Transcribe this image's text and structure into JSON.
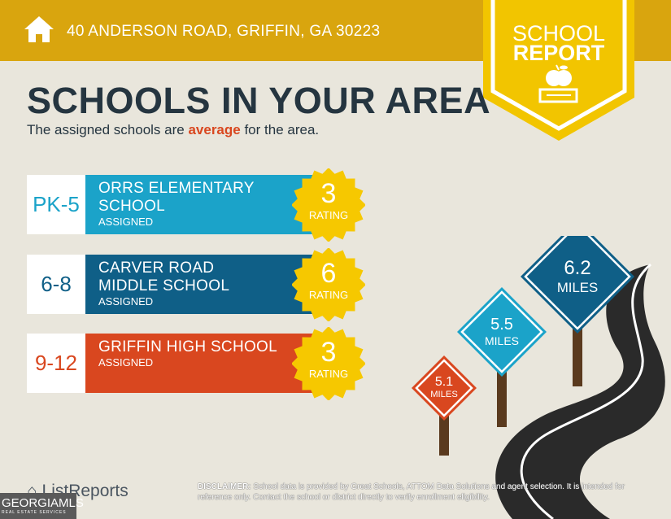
{
  "header": {
    "address": "40 ANDERSON ROAD, GRIFFIN, GA 30223",
    "icon": "home-icon"
  },
  "badge": {
    "line1": "SCHOOL",
    "line2": "REPORT",
    "icon": "apple-books-icon"
  },
  "title": "SCHOOLS IN YOUR AREA",
  "subtitle": {
    "before": "The assigned schools are ",
    "highlight": "average",
    "after": " for the area."
  },
  "schools": [
    {
      "grade": "PK-5",
      "name": "ORRS ELEMENTARY SCHOOL",
      "status": "ASSIGNED",
      "rating": "3",
      "rating_label": "RATING",
      "color": "#1BA3C9"
    },
    {
      "grade": "6-8",
      "name": "CARVER ROAD MIDDLE SCHOOL",
      "status": "ASSIGNED",
      "rating": "6",
      "rating_label": "RATING",
      "color": "#0F5F87"
    },
    {
      "grade": "9-12",
      "name": "GRIFFIN HIGH SCHOOL",
      "status": "ASSIGNED",
      "rating": "3",
      "rating_label": "RATING",
      "color": "#D9471F"
    }
  ],
  "distances": [
    {
      "value": "5.1",
      "unit": "MILES",
      "color": "#D9471F"
    },
    {
      "value": "5.5",
      "unit": "MILES",
      "color": "#1BA3C9"
    },
    {
      "value": "6.2",
      "unit": "MILES",
      "color": "#0F5F87"
    }
  ],
  "footer": {
    "brand": "ListReports",
    "mls": "GEORGIAMLS",
    "mls_sub": "REAL ESTATE SERVICES",
    "disclaimer_label": "DISCLAIMER:",
    "disclaimer": " School data is provided by Great Schools, ATTOM Data Solutions and agent selection. It is intended for reference only. Contact the school or district directly to verify enrollment eligibility."
  }
}
